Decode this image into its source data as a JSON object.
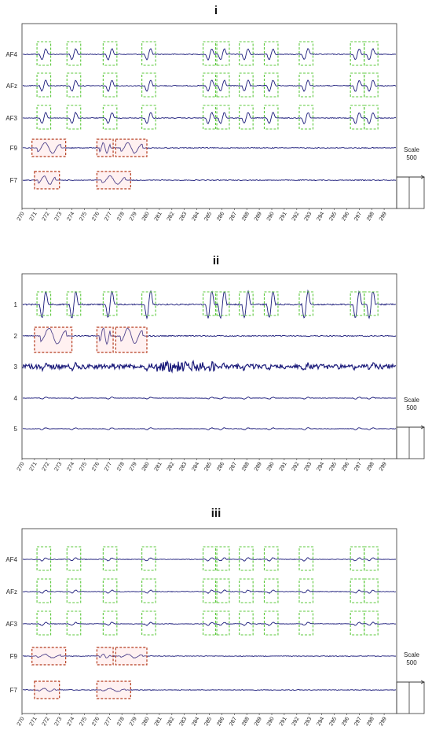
{
  "chart_data": [
    {
      "type": "line",
      "title": "i",
      "channels": [
        "AF4",
        "AFz",
        "AF3",
        "F9",
        "F7"
      ],
      "xticks": [
        "270",
        "271",
        "272",
        "273",
        "274",
        "275",
        "276",
        "277",
        "278",
        "279",
        "280",
        "281",
        "282",
        "283",
        "284",
        "285",
        "286",
        "287",
        "288",
        "289",
        "290",
        "291",
        "292",
        "293",
        "294",
        "295",
        "296",
        "297",
        "298",
        "299"
      ],
      "xlim": [
        270,
        300
      ],
      "scale_label": "Scale",
      "scale_value": "500",
      "green_boxes": [
        [
          271.2,
          272.3
        ],
        [
          273.6,
          274.7
        ],
        [
          276.5,
          277.6
        ],
        [
          279.6,
          280.7
        ],
        [
          284.5,
          285.6
        ],
        [
          285.5,
          286.6
        ],
        [
          287.4,
          288.5
        ],
        [
          289.4,
          290.5
        ],
        [
          292.2,
          293.3
        ],
        [
          296.3,
          297.4
        ],
        [
          297.4,
          298.5
        ]
      ],
      "red_boxes": [
        {
          "channel": "F9",
          "spans": [
            [
              270.8,
              273.5
            ],
            [
              276.0,
              277.3
            ],
            [
              277.5,
              280.0
            ]
          ]
        },
        {
          "channel": "F7",
          "spans": [
            [
              271.0,
              273.0
            ],
            [
              276.0,
              278.7
            ]
          ]
        }
      ]
    },
    {
      "type": "line",
      "title": "ii",
      "channels": [
        "1",
        "2",
        "3",
        "4",
        "5"
      ],
      "xticks": [
        "270",
        "271",
        "272",
        "273",
        "274",
        "275",
        "276",
        "277",
        "278",
        "279",
        "280",
        "281",
        "282",
        "283",
        "284",
        "285",
        "286",
        "287",
        "288",
        "289",
        "290",
        "291",
        "292",
        "293",
        "294",
        "295",
        "296",
        "297",
        "298",
        "299"
      ],
      "xlim": [
        270,
        300
      ],
      "scale_label": "Scale",
      "scale_value": "500",
      "green_boxes": [
        [
          271.2,
          272.3
        ],
        [
          273.6,
          274.7
        ],
        [
          276.5,
          277.6
        ],
        [
          279.6,
          280.7
        ],
        [
          284.5,
          285.6
        ],
        [
          285.5,
          286.6
        ],
        [
          287.4,
          288.5
        ],
        [
          289.4,
          290.5
        ],
        [
          292.2,
          293.3
        ],
        [
          296.3,
          297.4
        ],
        [
          297.4,
          298.5
        ]
      ],
      "red_boxes": [
        {
          "channel": "2",
          "spans": [
            [
              271.0,
              274.0
            ],
            [
              276.0,
              277.3
            ],
            [
              277.5,
              280.0
            ]
          ]
        }
      ]
    },
    {
      "type": "line",
      "title": "iii",
      "channels": [
        "AF4",
        "AFz",
        "AF3",
        "F9",
        "F7"
      ],
      "xticks": [
        "270",
        "271",
        "272",
        "273",
        "274",
        "275",
        "276",
        "277",
        "278",
        "279",
        "280",
        "281",
        "282",
        "283",
        "284",
        "285",
        "286",
        "287",
        "288",
        "289",
        "290",
        "291",
        "292",
        "293",
        "294",
        "295",
        "296",
        "297",
        "298",
        "299"
      ],
      "xlim": [
        270,
        300
      ],
      "scale_label": "Scale",
      "scale_value": "500",
      "green_boxes": [
        [
          271.2,
          272.3
        ],
        [
          273.6,
          274.7
        ],
        [
          276.5,
          277.6
        ],
        [
          279.6,
          280.7
        ],
        [
          284.5,
          285.6
        ],
        [
          285.5,
          286.6
        ],
        [
          287.4,
          288.5
        ],
        [
          289.4,
          290.5
        ],
        [
          292.2,
          293.3
        ],
        [
          296.3,
          297.4
        ],
        [
          297.4,
          298.5
        ]
      ],
      "red_boxes": [
        {
          "channel": "F9",
          "spans": [
            [
              270.8,
              273.5
            ],
            [
              276.0,
              277.3
            ],
            [
              277.5,
              280.0
            ]
          ]
        },
        {
          "channel": "F7",
          "spans": [
            [
              271.0,
              273.0
            ],
            [
              276.0,
              278.7
            ]
          ]
        }
      ]
    }
  ]
}
